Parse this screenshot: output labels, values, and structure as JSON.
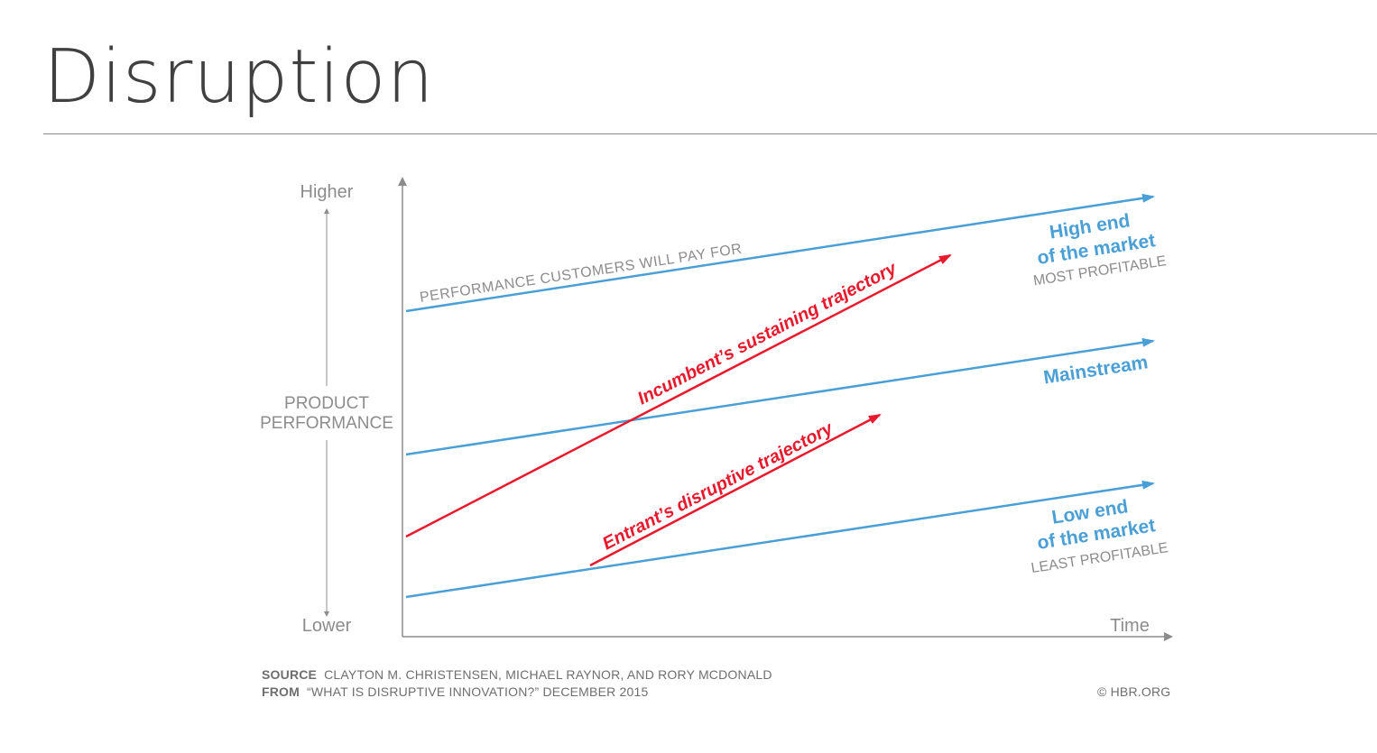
{
  "slide": {
    "title": "Disruption"
  },
  "diagram": {
    "y_axis": {
      "higher": "Higher",
      "lower": "Lower",
      "label_line1": "PRODUCT",
      "label_line2": "PERFORMANCE"
    },
    "x_axis": {
      "label": "Time"
    },
    "top_line_label": "PERFORMANCE CUSTOMERS WILL PAY FOR",
    "high_end": {
      "line1": "High end",
      "line2": "of the market",
      "note": "MOST PROFITABLE"
    },
    "mainstream": {
      "label": "Mainstream"
    },
    "low_end": {
      "line1": "Low end",
      "line2": "of the market",
      "note": "LEAST PROFITABLE"
    },
    "incumbent": {
      "label": "Incumbent’s sustaining trajectory"
    },
    "entrant": {
      "label": "Entrant’s disruptive trajectory"
    },
    "colors": {
      "market": "#4a9fd6",
      "trajectory": "#e8192c",
      "axis": "#8c8c8c"
    }
  },
  "footer": {
    "source_key": "SOURCE",
    "source_text": "CLAYTON M. CHRISTENSEN, MICHAEL RAYNOR, AND RORY MCDONALD",
    "from_key": "FROM",
    "from_text": "“WHAT IS DISRUPTIVE INNOVATION?” DECEMBER 2015",
    "credit": "© HBR.ORG"
  }
}
